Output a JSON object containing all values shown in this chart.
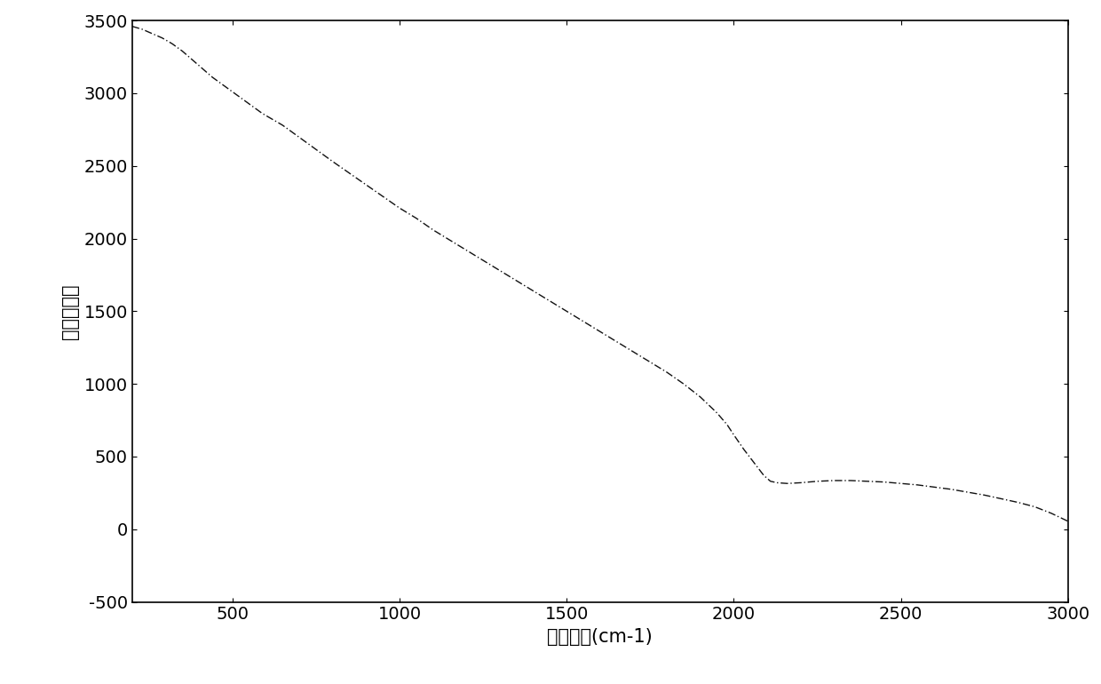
{
  "title": "",
  "xlabel": "拉曼迁移(cm-1)",
  "ylabel": "光强度计数",
  "xlim": [
    200,
    3000
  ],
  "ylim": [
    -500,
    3500
  ],
  "xticks": [
    500,
    1000,
    1500,
    2000,
    2500,
    3000
  ],
  "yticks": [
    -500,
    0,
    500,
    1000,
    1500,
    2000,
    2500,
    3000,
    3500
  ],
  "line_color": "#111111",
  "line_style": "-.",
  "line_width": 1.0,
  "background_color": "#ffffff",
  "xlabel_fontsize": 15,
  "ylabel_fontsize": 15,
  "tick_fontsize": 14,
  "x_data": [
    200,
    230,
    260,
    290,
    320,
    350,
    380,
    410,
    440,
    470,
    500,
    530,
    560,
    590,
    620,
    650,
    680,
    710,
    740,
    770,
    800,
    850,
    900,
    950,
    1000,
    1050,
    1100,
    1150,
    1200,
    1250,
    1300,
    1350,
    1400,
    1450,
    1500,
    1550,
    1600,
    1650,
    1700,
    1750,
    1800,
    1850,
    1900,
    1950,
    1980,
    2000,
    2030,
    2060,
    2090,
    2110,
    2130,
    2160,
    2200,
    2250,
    2300,
    2350,
    2400,
    2450,
    2500,
    2550,
    2600,
    2650,
    2700,
    2750,
    2800,
    2850,
    2900,
    2950,
    3000
  ],
  "y_data": [
    3460,
    3440,
    3410,
    3380,
    3340,
    3290,
    3230,
    3170,
    3110,
    3060,
    3010,
    2960,
    2910,
    2860,
    2820,
    2780,
    2730,
    2680,
    2630,
    2580,
    2530,
    2450,
    2370,
    2290,
    2210,
    2140,
    2060,
    1990,
    1920,
    1850,
    1780,
    1710,
    1640,
    1570,
    1500,
    1430,
    1360,
    1290,
    1220,
    1150,
    1080,
    1000,
    910,
    800,
    720,
    650,
    550,
    460,
    370,
    330,
    320,
    315,
    320,
    330,
    335,
    335,
    330,
    325,
    315,
    305,
    290,
    275,
    255,
    235,
    210,
    185,
    155,
    110,
    55
  ]
}
